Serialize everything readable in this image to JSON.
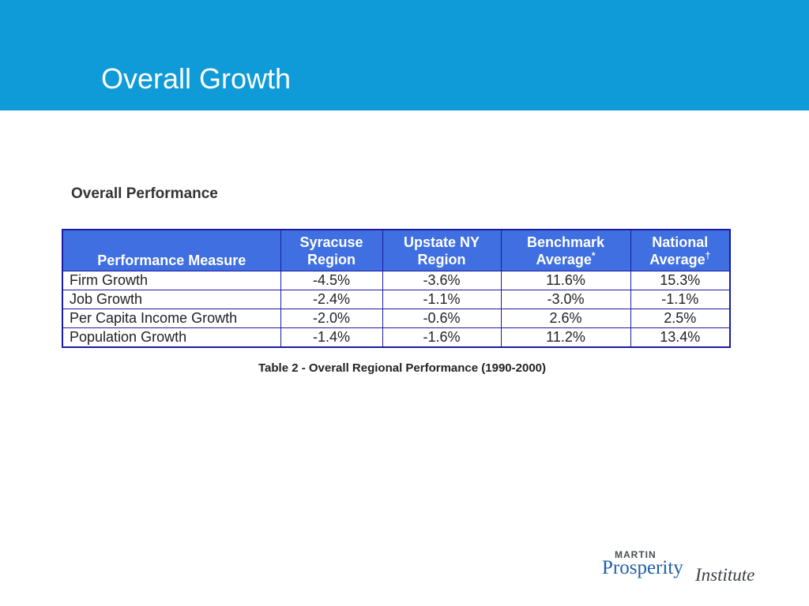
{
  "slide": {
    "title": "Overall Growth"
  },
  "section": {
    "heading": "Overall Performance"
  },
  "table": {
    "headers": [
      {
        "line1": "",
        "line2": "Performance Measure",
        "mark": ""
      },
      {
        "line1": "Syracuse",
        "line2": "Region",
        "mark": ""
      },
      {
        "line1": "Upstate NY",
        "line2": "Region",
        "mark": ""
      },
      {
        "line1": "Benchmark",
        "line2": "Average",
        "mark": "*"
      },
      {
        "line1": "National",
        "line2": "Average",
        "mark": "†"
      }
    ],
    "rows": [
      {
        "measure": "Firm Growth",
        "syracuse": "-4.5%",
        "upstate": "-3.6%",
        "benchmark": "11.6%",
        "national": "15.3%"
      },
      {
        "measure": "Job Growth",
        "syracuse": "-2.4%",
        "upstate": "-1.1%",
        "benchmark": "-3.0%",
        "national": "-1.1%"
      },
      {
        "measure": "Per Capita Income Growth",
        "syracuse": "-2.0%",
        "upstate": "-0.6%",
        "benchmark": "2.6%",
        "national": "2.5%"
      },
      {
        "measure": "Population Growth",
        "syracuse": "-1.4%",
        "upstate": "-1.6%",
        "benchmark": "11.2%",
        "national": "13.4%"
      }
    ],
    "caption": "Table 2 - Overall Regional Performance (1990-2000)"
  },
  "logo": {
    "martin": "MARTIN",
    "prosperity": "Prosperity",
    "institute": "Institute"
  },
  "colors": {
    "header_band": "#0f9bd7",
    "table_header": "#3f6fe0",
    "table_border": "#1a1aa6"
  }
}
